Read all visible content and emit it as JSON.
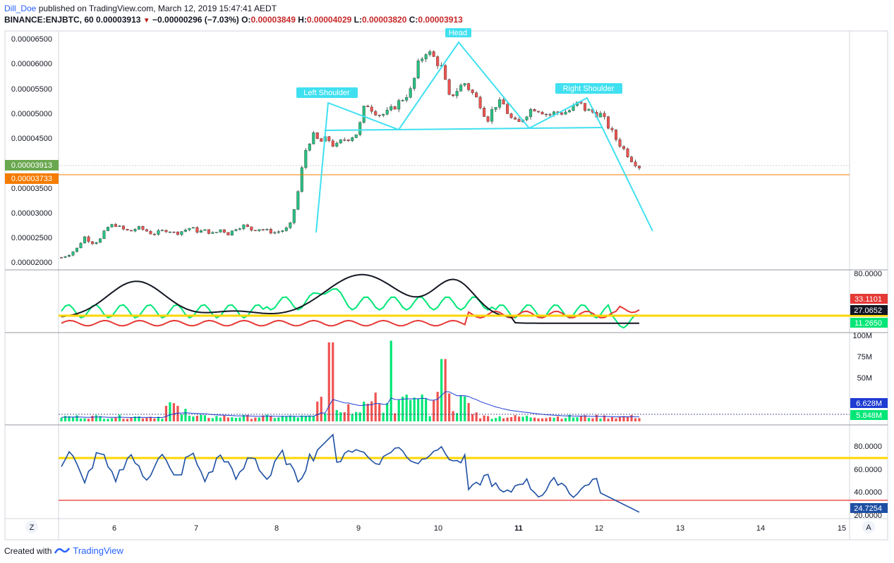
{
  "header": {
    "author": "Dill_Doe",
    "published_text": " published on TradingView.com, March 12, 2019 15:47:41 AEDT",
    "symbol_line": "BINANCE:ENJBTC, 60",
    "last_price": "0.00003913",
    "change": "−0.00000296 (−7.03%)",
    "o_label": "O:",
    "o_value": "0.00003849",
    "h_label": "H:",
    "h_value": "0.00004029",
    "l_label": "L:",
    "l_value": "0.00003820",
    "c_label": "C:",
    "c_value": "0.00003913"
  },
  "annotations": {
    "left_shoulder": "Left Shoulder",
    "head": "Head",
    "right_shoulder": "Right Shoulder"
  },
  "price_axis": {
    "ticks": [
      "0.00006500",
      "0.00006000",
      "0.00005500",
      "0.00005000",
      "0.00004500",
      "0.00003500",
      "0.00003000",
      "0.00002500",
      "0.00002000"
    ],
    "badge_last": "0.00003913",
    "badge_level": "0.00003733"
  },
  "osc_axis": {
    "top_tick": "80.0000",
    "badge_red": "33.1101",
    "badge_black": "27.0652",
    "badge_green": "11.2650"
  },
  "vol_axis": {
    "ticks": [
      "100M",
      "75M",
      "50M"
    ],
    "badge_ma": "6.628M",
    "badge_vol": "5.848M"
  },
  "rsi_axis": {
    "ticks": [
      "80.0000",
      "60.0000",
      "40.0000",
      "20.0000"
    ],
    "badge": "24.7254"
  },
  "time_axis": {
    "labels": [
      "6",
      "7",
      "8",
      "9",
      "10",
      "11",
      "12",
      "13",
      "14",
      "15"
    ],
    "z_button": "Z",
    "a_button": "A"
  },
  "footer": {
    "created_with": "Created with",
    "brand": "TradingView"
  },
  "colors": {
    "up": "#26c281",
    "down": "#ef5350",
    "pattern": "#40e0f0",
    "level": "#f57c00",
    "yellow": "#ffd600",
    "rsi": "#1e4fa3"
  },
  "chart_data": {
    "type": "candlestick",
    "symbol": "BINANCE:ENJBTC",
    "interval": "60",
    "ylim": [
      1.85e-05,
      6.68e-05
    ],
    "price_path": [
      [
        0,
        2.08e-05
      ],
      [
        1,
        2.15e-05
      ],
      [
        2,
        2.25e-05
      ],
      [
        3,
        2.5e-05
      ],
      [
        4,
        2.38e-05
      ],
      [
        5,
        2.42e-05
      ],
      [
        6,
        2.68e-05
      ],
      [
        7,
        2.75e-05
      ],
      [
        8,
        2.65e-05
      ],
      [
        9,
        2.6e-05
      ],
      [
        10,
        2.68e-05
      ],
      [
        11,
        2.63e-05
      ],
      [
        12,
        2.55e-05
      ],
      [
        13,
        2.6e-05
      ],
      [
        14,
        2.64e-05
      ],
      [
        15,
        2.56e-05
      ],
      [
        16,
        2.62e-05
      ],
      [
        17,
        2.68e-05
      ],
      [
        18,
        2.6e-05
      ],
      [
        19,
        2.62e-05
      ],
      [
        20,
        2.55e-05
      ],
      [
        21,
        2.65e-05
      ],
      [
        22,
        2.55e-05
      ],
      [
        23,
        2.68e-05
      ],
      [
        24,
        2.72e-05
      ],
      [
        25,
        2.64e-05
      ],
      [
        26,
        2.66e-05
      ],
      [
        27,
        2.62e-05
      ],
      [
        28,
        2.58e-05
      ],
      [
        29,
        2.62e-05
      ],
      [
        30,
        2.68e-05
      ],
      [
        31,
        3.3e-05
      ],
      [
        32,
        4.2e-05
      ],
      [
        33,
        4.55e-05
      ],
      [
        34,
        4.4e-05
      ],
      [
        35,
        4.48e-05
      ],
      [
        36,
        4.3e-05
      ],
      [
        37,
        4.45e-05
      ],
      [
        38,
        4.5e-05
      ],
      [
        39,
        4.6e-05
      ],
      [
        40,
        5.2e-05
      ],
      [
        41,
        5.05e-05
      ],
      [
        42,
        4.95e-05
      ],
      [
        43,
        5e-05
      ],
      [
        44,
        5.15e-05
      ],
      [
        45,
        5.3e-05
      ],
      [
        46,
        5.45e-05
      ],
      [
        47,
        6e-05
      ],
      [
        48,
        6.25e-05
      ],
      [
        49,
        6.1e-05
      ],
      [
        50,
        5.9e-05
      ],
      [
        51,
        5.3e-05
      ],
      [
        52,
        5.45e-05
      ],
      [
        53,
        5.6e-05
      ],
      [
        54,
        5.4e-05
      ],
      [
        55,
        5.2e-05
      ],
      [
        56,
        4.85e-05
      ],
      [
        57,
        5.15e-05
      ],
      [
        58,
        5.2e-05
      ],
      [
        59,
        4.9e-05
      ],
      [
        60,
        4.75e-05
      ],
      [
        61,
        4.95e-05
      ],
      [
        62,
        5.1e-05
      ],
      [
        63,
        5.05e-05
      ],
      [
        64,
        4.95e-05
      ],
      [
        65,
        5e-05
      ],
      [
        66,
        5e-05
      ],
      [
        67,
        5.05e-05
      ],
      [
        68,
        5.2e-05
      ],
      [
        69,
        5.05e-05
      ],
      [
        70,
        5e-05
      ],
      [
        71,
        4.95e-05
      ],
      [
        72,
        4.7e-05
      ],
      [
        73,
        4.45e-05
      ],
      [
        74,
        4.25e-05
      ],
      [
        75,
        4.05e-05
      ],
      [
        76,
        3.91e-05
      ]
    ],
    "x_labels": [
      "6",
      "7",
      "8",
      "9",
      "10",
      "11",
      "12",
      "13",
      "14",
      "15"
    ],
    "pattern": {
      "left_shoulder_peak": 5.2e-05,
      "head_peak": 6.4e-05,
      "right_shoulder_peak": 5.3e-05,
      "neckline": 4.67e-05,
      "projection_target": 2.6e-05
    },
    "horizontal_level": 3.733e-05,
    "last_price": 3.913e-05,
    "oscillator": {
      "ylim": [
        0,
        90
      ],
      "yellow_level": 26.5,
      "series": [
        "red",
        "black",
        "green"
      ],
      "last": [
        33.1101,
        27.0652,
        11.265
      ]
    },
    "volume": {
      "ylim": [
        0,
        100
      ],
      "unit": "M",
      "ma_last": 6.628,
      "last": 5.848
    },
    "rsi": {
      "ylim": [
        15,
        95
      ],
      "upper_level": 70,
      "lower_level": 32,
      "last": 24.7254
    }
  }
}
